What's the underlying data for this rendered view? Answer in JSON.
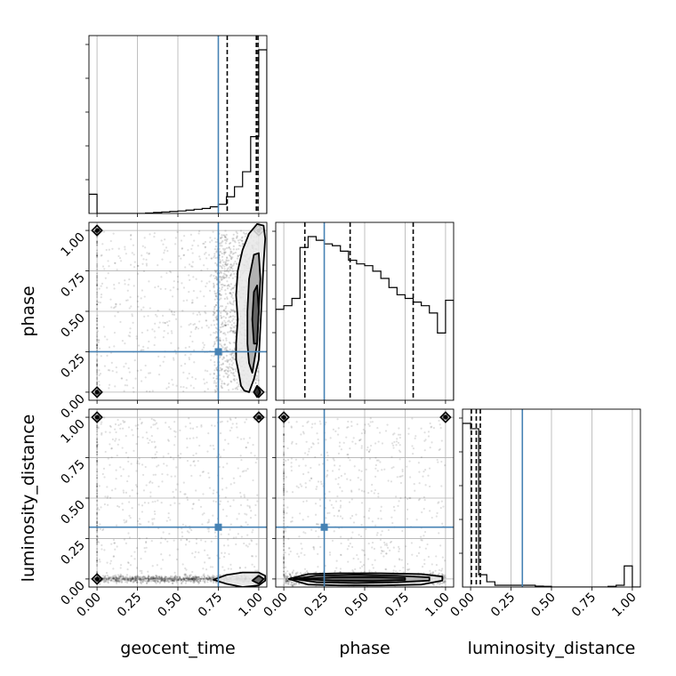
{
  "chart_data": {
    "type": "corner",
    "parameters": [
      "geocent_time",
      "phase",
      "luminosity_distance"
    ],
    "axis_labels": [
      "geocent_time",
      "phase",
      "luminosity_distance"
    ],
    "tick_labels": [
      "0.00",
      "0.25",
      "0.50",
      "0.75",
      "1.00"
    ],
    "range": [
      -0.05,
      1.05
    ],
    "grid": true,
    "truths": [
      0.75,
      0.25,
      0.32
    ],
    "truth_color": "#4682b4",
    "histograms": [
      {
        "parameter": "geocent_time",
        "bin_edges": [
          -0.05,
          0.0,
          0.05,
          0.1,
          0.15,
          0.2,
          0.25,
          0.3,
          0.35,
          0.4,
          0.45,
          0.5,
          0.55,
          0.6,
          0.65,
          0.7,
          0.75,
          0.8,
          0.85,
          0.9,
          0.95,
          1.0,
          1.05
        ],
        "counts": [
          0.115,
          0.0,
          0.0,
          0.0,
          0.0,
          0.0,
          0.0,
          0.003,
          0.006,
          0.009,
          0.012,
          0.015,
          0.02,
          0.025,
          0.03,
          0.04,
          0.055,
          0.1,
          0.16,
          0.25,
          0.46,
          0.98
        ],
        "quantiles": [
          0.805,
          0.985,
          0.995
        ]
      },
      {
        "parameter": "phase",
        "bin_edges": [
          -0.05,
          0.0,
          0.05,
          0.1,
          0.15,
          0.2,
          0.25,
          0.3,
          0.35,
          0.4,
          0.45,
          0.5,
          0.55,
          0.6,
          0.65,
          0.7,
          0.75,
          0.8,
          0.85,
          0.9,
          0.95,
          1.0,
          1.05
        ],
        "counts": [
          0.5,
          0.52,
          0.56,
          0.84,
          0.9,
          0.88,
          0.86,
          0.85,
          0.82,
          0.77,
          0.75,
          0.74,
          0.71,
          0.67,
          0.62,
          0.58,
          0.56,
          0.54,
          0.52,
          0.48,
          0.37,
          0.55
        ],
        "quantiles": [
          0.13,
          0.41,
          0.8
        ]
      },
      {
        "parameter": "luminosity_distance",
        "bin_edges": [
          -0.05,
          0.0,
          0.05,
          0.1,
          0.15,
          0.2,
          0.25,
          0.3,
          0.35,
          0.4,
          0.45,
          0.5,
          0.55,
          0.6,
          0.65,
          0.7,
          0.75,
          0.8,
          0.85,
          0.9,
          0.95,
          1.0,
          1.05
        ],
        "counts": [
          0.93,
          0.9,
          0.07,
          0.03,
          0.01,
          0.01,
          0.01,
          0.01,
          0.01,
          0.005,
          0.004,
          0.0,
          0.0,
          0.0,
          0.0,
          0.0,
          0.0,
          0.0,
          0.004,
          0.01,
          0.12,
          0.0
        ],
        "quantiles": [
          0.005,
          0.035,
          0.06
        ]
      }
    ],
    "scatter_panels": [
      {
        "x": "geocent_time",
        "y": "phase",
        "x_band": [
          0.72,
          1.0
        ],
        "y_band": [
          0.02,
          0.98
        ],
        "corner_points": [
          [
            0.0,
            1.0
          ],
          [
            0.0,
            0.0
          ],
          [
            1.0,
            0.0
          ],
          [
            1.0,
            1.0
          ]
        ],
        "contours": [
          {
            "level": "outer",
            "x": [
              0.89,
              0.88,
              0.86,
              0.86,
              0.87,
              0.86,
              0.87,
              0.9,
              0.94,
              0.99,
              1.03,
              1.04,
              1.03,
              1.02,
              1.01,
              1.0,
              0.97,
              0.94,
              0.91,
              0.89
            ],
            "y": [
              0.04,
              0.1,
              0.2,
              0.3,
              0.45,
              0.6,
              0.75,
              0.88,
              0.98,
              1.04,
              1.03,
              0.95,
              0.8,
              0.6,
              0.4,
              0.2,
              0.08,
              0.0,
              0.01,
              0.04
            ]
          },
          {
            "level": "middle",
            "x": [
              0.94,
              0.93,
              0.93,
              0.94,
              0.97,
              1.0,
              1.01,
              1.0,
              0.99,
              0.96,
              0.94
            ],
            "y": [
              0.18,
              0.3,
              0.5,
              0.7,
              0.85,
              0.86,
              0.7,
              0.5,
              0.3,
              0.12,
              0.18
            ]
          },
          {
            "level": "inner",
            "x": [
              0.97,
              0.96,
              0.97,
              0.99,
              1.0,
              0.99,
              0.97
            ],
            "y": [
              0.3,
              0.45,
              0.62,
              0.66,
              0.5,
              0.3,
              0.3
            ]
          },
          {
            "level": "corner",
            "x": [
              0.97,
              0.99,
              1.01,
              0.99,
              0.97
            ],
            "y": [
              0.0,
              -0.03,
              0.0,
              0.04,
              0.0
            ]
          }
        ]
      },
      {
        "x": "geocent_time",
        "y": "luminosity_distance",
        "x_band": [
          0.0,
          1.0
        ],
        "y_band": [
          -0.01,
          0.01
        ],
        "corner_points": [
          [
            0.0,
            1.0
          ],
          [
            1.0,
            1.0
          ],
          [
            0.0,
            0.0
          ],
          [
            1.0,
            0.0
          ]
        ],
        "contours": [
          {
            "level": "outer",
            "x": [
              0.72,
              0.8,
              0.9,
              1.0,
              1.04,
              1.04,
              1.0,
              0.9,
              0.8,
              0.72
            ],
            "y": [
              -0.005,
              -0.03,
              -0.05,
              -0.04,
              -0.01,
              0.02,
              0.04,
              0.04,
              0.025,
              -0.005
            ]
          },
          {
            "level": "inner",
            "x": [
              0.96,
              1.0,
              1.03,
              1.0,
              0.96
            ],
            "y": [
              -0.01,
              -0.03,
              0.0,
              0.02,
              -0.01
            ]
          }
        ]
      },
      {
        "x": "phase",
        "y": "luminosity_distance",
        "x_band": [
          0.0,
          1.0
        ],
        "y_band": [
          -0.03,
          0.03
        ],
        "corner_points": [
          [
            0.0,
            1.0
          ],
          [
            1.0,
            1.0
          ]
        ],
        "contours": [
          {
            "level": "outer",
            "x": [
              0.03,
              0.15,
              0.35,
              0.6,
              0.85,
              0.98,
              0.98,
              0.85,
              0.6,
              0.35,
              0.15,
              0.03
            ],
            "y": [
              0.0,
              -0.035,
              -0.04,
              -0.04,
              -0.035,
              -0.01,
              0.015,
              0.03,
              0.035,
              0.035,
              0.03,
              0.0
            ]
          },
          {
            "level": "middle",
            "x": [
              0.06,
              0.2,
              0.45,
              0.7,
              0.9,
              0.9,
              0.7,
              0.45,
              0.2,
              0.06
            ],
            "y": [
              0.0,
              -0.02,
              -0.025,
              -0.02,
              -0.01,
              0.01,
              0.02,
              0.025,
              0.02,
              0.0
            ]
          },
          {
            "level": "inner",
            "x": [
              0.1,
              0.3,
              0.55,
              0.75,
              0.75,
              0.55,
              0.3,
              0.1
            ],
            "y": [
              0.0,
              -0.01,
              -0.012,
              -0.006,
              0.006,
              0.012,
              0.01,
              0.0
            ]
          }
        ]
      }
    ]
  }
}
